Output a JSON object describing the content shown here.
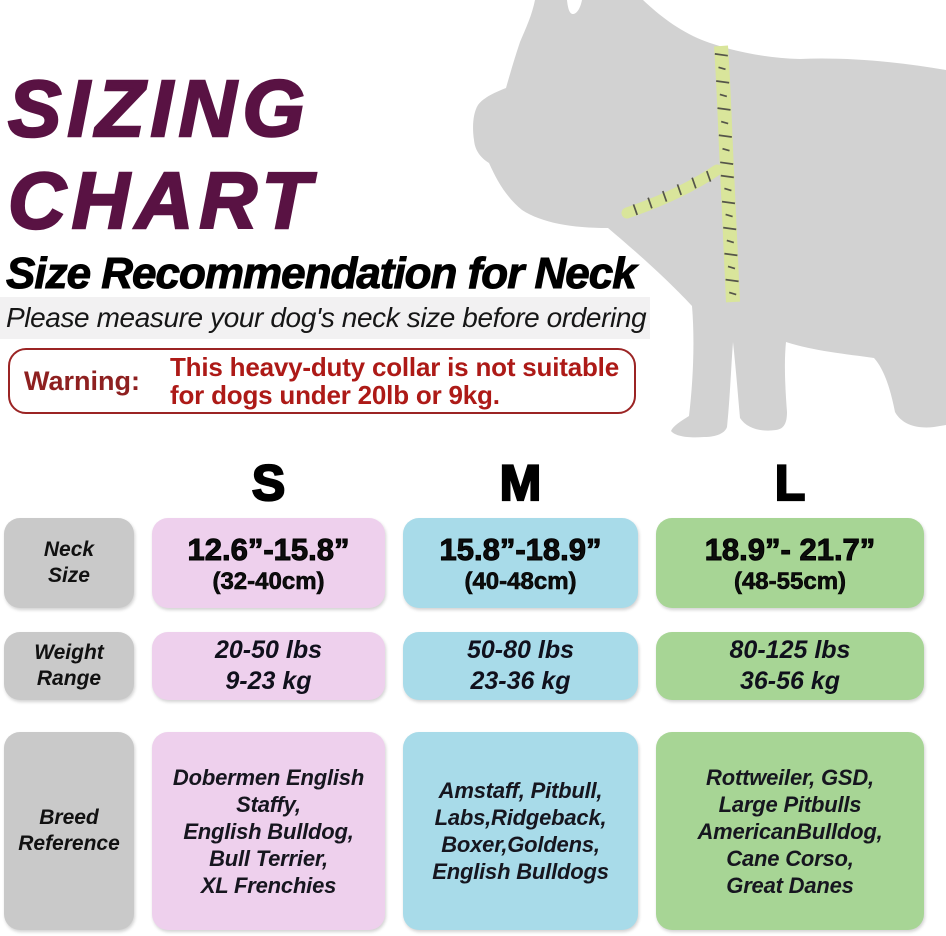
{
  "palette": {
    "title-purple": "#591243",
    "warning-border": "#9b2424",
    "warning-label-color": "#8e2020",
    "warning-text-color": "#ad1a17",
    "band-bg": "#f2f1f2",
    "gray-box": "#c9c9c9",
    "pink-box": "#eed0ed",
    "blue-box": "#a8dbe9",
    "green-box": "#a7d595",
    "dog-gray": "#d2d2d2",
    "tape-green": "#d9e59b",
    "tape-tick": "#55554a"
  },
  "header": {
    "title_line1": "SIZING",
    "title_line2": "CHART",
    "subtitle": "Size Recommendation for Neck",
    "tagline": "Please measure your dog's neck size before ordering"
  },
  "warning": {
    "label": "Warning:",
    "line1": "This heavy-duty collar is not suitable",
    "line2": "for dogs under 20lb or 9kg."
  },
  "illustration": {
    "icon": "dog-silhouette-with-measuring-tape-icon"
  },
  "table": {
    "size_labels": [
      "S",
      "M",
      "L"
    ],
    "row_headers": [
      "Neck\nSize",
      "Weight\nRange",
      "Breed\nReference"
    ],
    "sizes": [
      {
        "label": "S",
        "neck_in": "12.6”-15.8”",
        "neck_cm": "(32-40cm)",
        "weight_lbs": "20-50 lbs",
        "weight_kg": "9-23 kg",
        "breeds": "Dobermen English\nStaffy,\nEnglish Bulldog,\nBull Terrier,\nXL Frenchies"
      },
      {
        "label": "M",
        "neck_in": "15.8”-18.9”",
        "neck_cm": "(40-48cm)",
        "weight_lbs": "50-80 lbs",
        "weight_kg": "23-36 kg",
        "breeds": "Amstaff, Pitbull,\nLabs,Ridgeback,\nBoxer,Goldens,\nEnglish Bulldogs"
      },
      {
        "label": "L",
        "neck_in": "18.9”- 21.7”",
        "neck_cm": "(48-55cm)",
        "weight_lbs": "80-125 lbs",
        "weight_kg": "36-56 kg",
        "breeds": "Rottweiler, GSD,\nLarge Pitbulls\nAmericanBulldog,\nCane Corso,\nGreat Danes"
      }
    ]
  }
}
